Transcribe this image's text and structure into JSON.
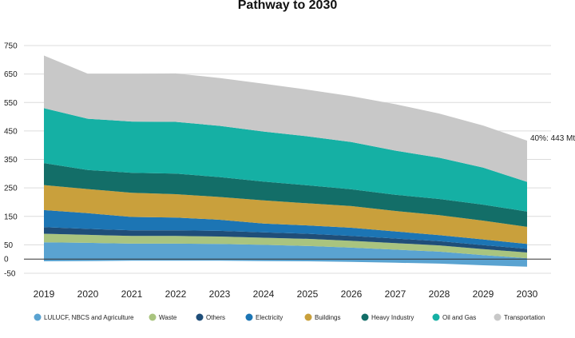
{
  "chart_data": {
    "type": "area",
    "stacked": true,
    "title": "Pathway to 2030",
    "x": [
      "2019",
      "2020",
      "2021",
      "2022",
      "2023",
      "2024",
      "2025",
      "2026",
      "2027",
      "2028",
      "2029",
      "2030"
    ],
    "ylim": [
      -50,
      750
    ],
    "yticks": [
      -50,
      0,
      50,
      150,
      250,
      350,
      450,
      550,
      650,
      750
    ],
    "grid": true,
    "legend_position": "bottom",
    "annotation": "40%: 443 Mt",
    "series": [
      {
        "name": "LULUCF, NBCS and Agriculture",
        "color": "#5aa3d1",
        "values": [
          67,
          64,
          60,
          60,
          59,
          57,
          54,
          50,
          46,
          42,
          36,
          30
        ]
      },
      {
        "name": "Waste",
        "color": "#a9c47f",
        "values": [
          30,
          28,
          27,
          27,
          26,
          25,
          25,
          24,
          23,
          22,
          21,
          20
        ]
      },
      {
        "name": "Others",
        "color": "#1f4e79",
        "values": [
          23,
          21,
          20,
          20,
          20,
          19,
          18,
          17,
          16,
          15,
          14,
          13
        ]
      },
      {
        "name": "Electricity",
        "color": "#1c75b4",
        "values": [
          60,
          55,
          47,
          45,
          39,
          31,
          29,
          29,
          25,
          21,
          20,
          17
        ]
      },
      {
        "name": "Buildings",
        "color": "#c9a03c",
        "values": [
          88,
          85,
          85,
          82,
          80,
          81,
          78,
          76,
          72,
          70,
          66,
          60
        ]
      },
      {
        "name": "Heavy Industry",
        "color": "#136e68",
        "values": [
          77,
          67,
          70,
          72,
          70,
          66,
          63,
          59,
          57,
          57,
          56,
          54
        ]
      },
      {
        "name": "Oil and Gas",
        "color": "#15b0a4",
        "values": [
          193,
          180,
          180,
          182,
          180,
          176,
          172,
          166,
          155,
          145,
          130,
          104
        ]
      },
      {
        "name": "Transportation",
        "color": "#c8c8c8",
        "values": [
          185,
          158,
          168,
          170,
          168,
          168,
          164,
          161,
          163,
          155,
          148,
          145
        ]
      }
    ]
  }
}
